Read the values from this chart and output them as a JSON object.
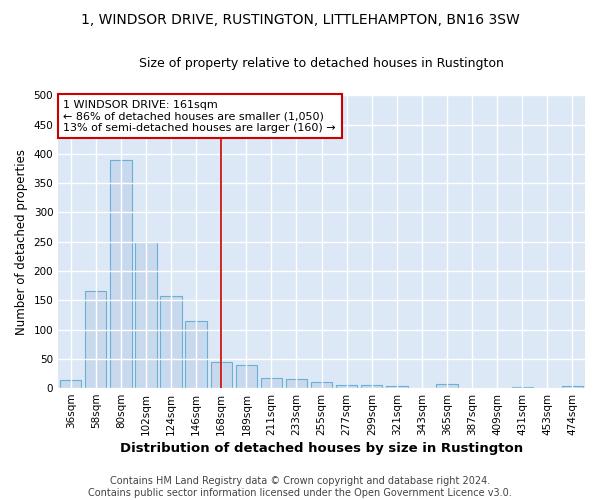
{
  "title": "1, WINDSOR DRIVE, RUSTINGTON, LITTLEHAMPTON, BN16 3SW",
  "subtitle": "Size of property relative to detached houses in Rustington",
  "xlabel": "Distribution of detached houses by size in Rustington",
  "ylabel": "Number of detached properties",
  "categories": [
    "36sqm",
    "58sqm",
    "80sqm",
    "102sqm",
    "124sqm",
    "146sqm",
    "168sqm",
    "189sqm",
    "211sqm",
    "233sqm",
    "255sqm",
    "277sqm",
    "299sqm",
    "321sqm",
    "343sqm",
    "365sqm",
    "387sqm",
    "409sqm",
    "431sqm",
    "453sqm",
    "474sqm"
  ],
  "values": [
    13,
    165,
    390,
    250,
    157,
    115,
    44,
    40,
    18,
    15,
    10,
    6,
    5,
    3,
    0,
    7,
    0,
    0,
    2,
    0,
    4
  ],
  "bar_color": "#c8d9ee",
  "bar_edge_color": "#6baed6",
  "vline_index": 6,
  "vline_color": "#cc0000",
  "annotation_text": "1 WINDSOR DRIVE: 161sqm\n← 86% of detached houses are smaller (1,050)\n13% of semi-detached houses are larger (160) →",
  "annotation_box_color": "#ffffff",
  "annotation_box_edge_color": "#cc0000",
  "footer_text": "Contains HM Land Registry data © Crown copyright and database right 2024.\nContains public sector information licensed under the Open Government Licence v3.0.",
  "ylim": [
    0,
    500
  ],
  "yticks": [
    0,
    50,
    100,
    150,
    200,
    250,
    300,
    350,
    400,
    450,
    500
  ],
  "fig_background_color": "#ffffff",
  "plot_background_color": "#dce8f5",
  "grid_color": "#ffffff",
  "title_fontsize": 10,
  "subtitle_fontsize": 9,
  "xlabel_fontsize": 9.5,
  "ylabel_fontsize": 8.5,
  "tick_fontsize": 7.5,
  "annotation_fontsize": 8,
  "footer_fontsize": 7
}
